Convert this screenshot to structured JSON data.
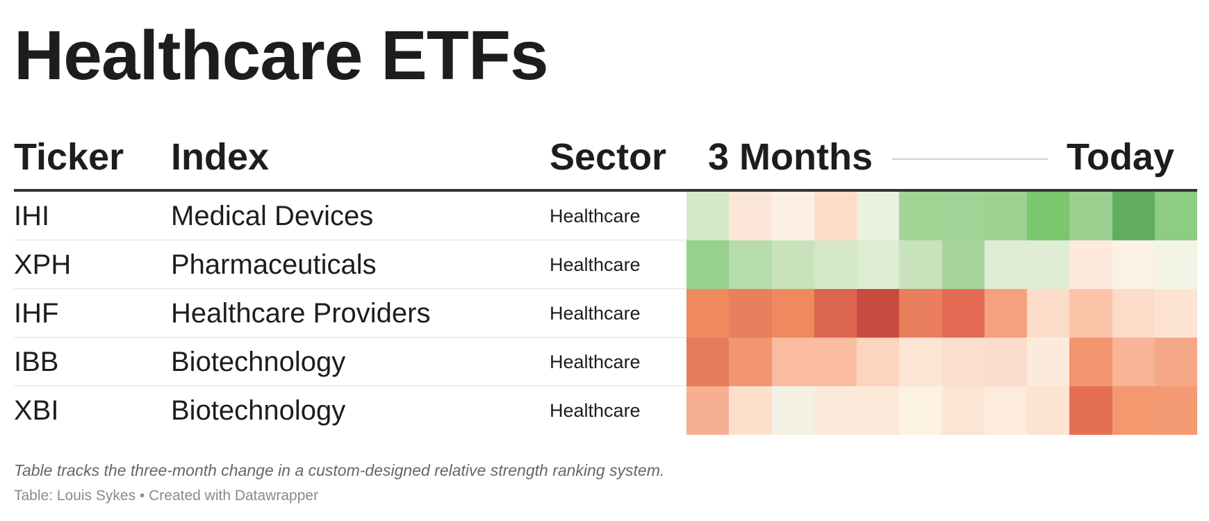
{
  "chart_data": {
    "type": "heatmap",
    "title": "Healthcare ETFs",
    "columns": {
      "ticker": "Ticker",
      "index": "Index",
      "sector": "Sector",
      "range_start": "3 Months",
      "range_end": "Today"
    },
    "rows": [
      {
        "ticker": "IHI",
        "index": "Medical Devices",
        "sector": "Healthcare",
        "colors": [
          "#d5e9c9",
          "#fbe6d8",
          "#fcefe3",
          "#fdddc9",
          "#eaf1dd",
          "#a2d496",
          "#a0d395",
          "#9ed293",
          "#7ac76d",
          "#9bd090",
          "#62ad5e",
          "#8ccc83"
        ]
      },
      {
        "ticker": "XPH",
        "index": "Pharmaceuticals",
        "sector": "Healthcare",
        "colors": [
          "#98d08d",
          "#b6dcab",
          "#c8e3bc",
          "#d4e8c8",
          "#ddedd1",
          "#c8e3bc",
          "#a8d59c",
          "#e0edd5",
          "#e0edd5",
          "#fdeadd",
          "#fbf1e4",
          "#f3f3e5"
        ]
      },
      {
        "ticker": "IHF",
        "index": "Healthcare Providers",
        "sector": "Healthcare",
        "colors": [
          "#ef8a5f",
          "#e97f5d",
          "#ef8a5f",
          "#dc6650",
          "#c94b3f",
          "#e97f5d",
          "#e56b54",
          "#f4a17e",
          "#fcdcc8",
          "#fbc3a8",
          "#fcdcc8",
          "#fde3d2"
        ]
      },
      {
        "ticker": "IBB",
        "index": "Biotechnology",
        "sector": "Healthcare",
        "colors": [
          "#e57c5a",
          "#f2966f",
          "#fabca0",
          "#fabca0",
          "#fdd4be",
          "#fde5d5",
          "#fddfcd",
          "#fcdccc",
          "#fcebdd",
          "#f3966f",
          "#f8b497",
          "#f5a888"
        ]
      },
      {
        "ticker": "XBI",
        "index": "Biotechnology",
        "sector": "Healthcare",
        "colors": [
          "#f7af91",
          "#fde0cc",
          "#f3f1e3",
          "#fce9da",
          "#fce9da",
          "#fbf2e2",
          "#fde5d5",
          "#fdebdc",
          "#fde3d2",
          "#e56f55",
          "#f4996f",
          "#f39a72"
        ]
      }
    ],
    "notes": "Table tracks the three-month change in a custom-designed relative strength ranking system.",
    "credit": "Table: Louis Sykes • Created with Datawrapper"
  }
}
